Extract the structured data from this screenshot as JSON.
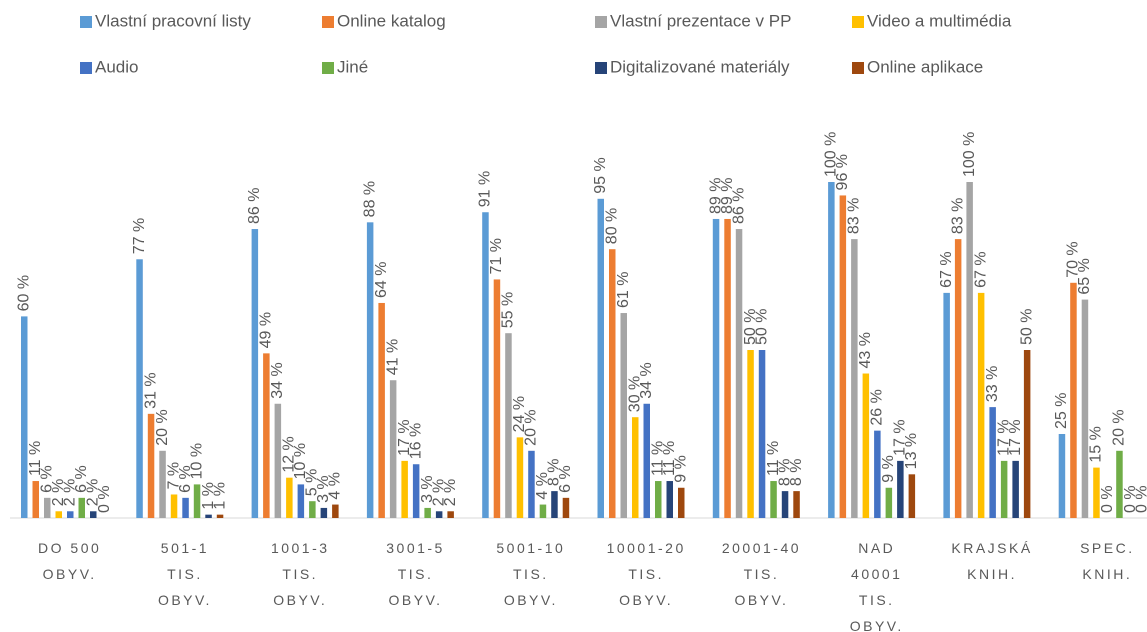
{
  "chart_data": {
    "type": "bar",
    "categories": [
      "DO 500 OBYV.",
      "501-1 TIS. OBYV.",
      "1001-3 TIS. OBYV.",
      "3001-5 TIS. OBYV.",
      "5001-10 TIS. OBYV.",
      "10001-20 TIS. OBYV.",
      "20001-40 TIS. OBYV.",
      "NAD 40001 TIS. OBYV.",
      "KRAJSKÁ KNIH.",
      "SPEC. KNIH."
    ],
    "series": [
      {
        "name": "Vlastní pracovní listy",
        "color": "#5b9bd5",
        "values": [
          60,
          77,
          86,
          88,
          91,
          95,
          89,
          100,
          67,
          25
        ],
        "value_labels": [
          "60 %",
          "77 %",
          "86 %",
          "88 %",
          "91 %",
          "95 %",
          "89 %",
          "100 %",
          "67 %",
          "25 %"
        ]
      },
      {
        "name": "Online katalog",
        "color": "#ed7d31",
        "values": [
          11,
          31,
          49,
          64,
          71,
          80,
          89,
          96,
          83,
          70
        ],
        "value_labels": [
          "11 %",
          "31 %",
          "49 %",
          "64 %",
          "71 %",
          "80 %",
          "89 %",
          "96 %",
          "83 %",
          "70 %"
        ]
      },
      {
        "name": "Vlastní prezentace v PP",
        "color": "#a5a5a5",
        "values": [
          6,
          20,
          34,
          41,
          55,
          61,
          86,
          83,
          100,
          65
        ],
        "value_labels": [
          "6 %",
          "20 %",
          "34 %",
          "41 %",
          "55 %",
          "61 %",
          "86 %",
          "83 %",
          "100 %",
          "65 %"
        ]
      },
      {
        "name": "Video a multimédia",
        "color": "#ffc000",
        "values": [
          2,
          7,
          12,
          17,
          24,
          30,
          50,
          43,
          67,
          15
        ],
        "value_labels": [
          "2 %",
          "7 %",
          "12 %",
          "17 %",
          "24 %",
          "30 %",
          "50 %",
          "43 %",
          "67 %",
          "15 %"
        ]
      },
      {
        "name": "Audio",
        "color": "#4472c4",
        "values": [
          2,
          6,
          10,
          16,
          20,
          34,
          50,
          26,
          33,
          0
        ],
        "value_labels": [
          "2 %",
          "6 %",
          "10 %",
          "16 %",
          "20 %",
          "34 %",
          "50 %",
          "26 %",
          "33 %",
          "0 %"
        ]
      },
      {
        "name": "Jiné",
        "color": "#70ad47",
        "values": [
          6,
          10,
          5,
          3,
          4,
          11,
          11,
          9,
          17,
          20
        ],
        "value_labels": [
          "6 %",
          "10 %",
          "5 %",
          "3 %",
          "4 %",
          "11 %",
          "11 %",
          "9 %",
          "17 %",
          "20 %"
        ]
      },
      {
        "name": "Digitalizované materiály",
        "color": "#264478",
        "values": [
          2,
          1,
          3,
          2,
          8,
          11,
          8,
          17,
          17,
          0
        ],
        "value_labels": [
          "2 %",
          "1 %",
          "3 %",
          "2 %",
          "8 %",
          "11 %",
          "8 %",
          "17 %",
          "17 %",
          "0 %"
        ]
      },
      {
        "name": "Online aplikace",
        "color": "#9e480e",
        "values": [
          0,
          1,
          4,
          2,
          6,
          9,
          8,
          13,
          50,
          0
        ],
        "value_labels": [
          "0 %",
          "1 %",
          "4 %",
          "2 %",
          "6 %",
          "9 %",
          "8 %",
          "13 %",
          "50 %",
          "0 %"
        ]
      }
    ]
  }
}
